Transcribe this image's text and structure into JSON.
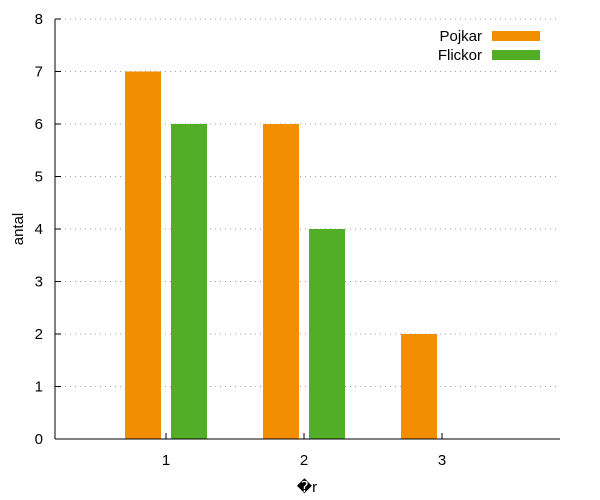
{
  "chart_data": {
    "type": "bar",
    "categories": [
      "1",
      "2",
      "3"
    ],
    "series": [
      {
        "name": "Pojkar",
        "values": [
          7,
          6,
          2
        ],
        "color": "#f28e00"
      },
      {
        "name": "Flickor",
        "values": [
          6,
          4,
          null
        ],
        "color": "#52ad27"
      }
    ],
    "xlabel": "�r",
    "ylabel": "antal",
    "ylim": [
      0,
      8
    ],
    "yticks": [
      "0",
      "1",
      "2",
      "3",
      "4",
      "5",
      "6",
      "7",
      "8"
    ],
    "grid": true,
    "legend": "top-right"
  }
}
